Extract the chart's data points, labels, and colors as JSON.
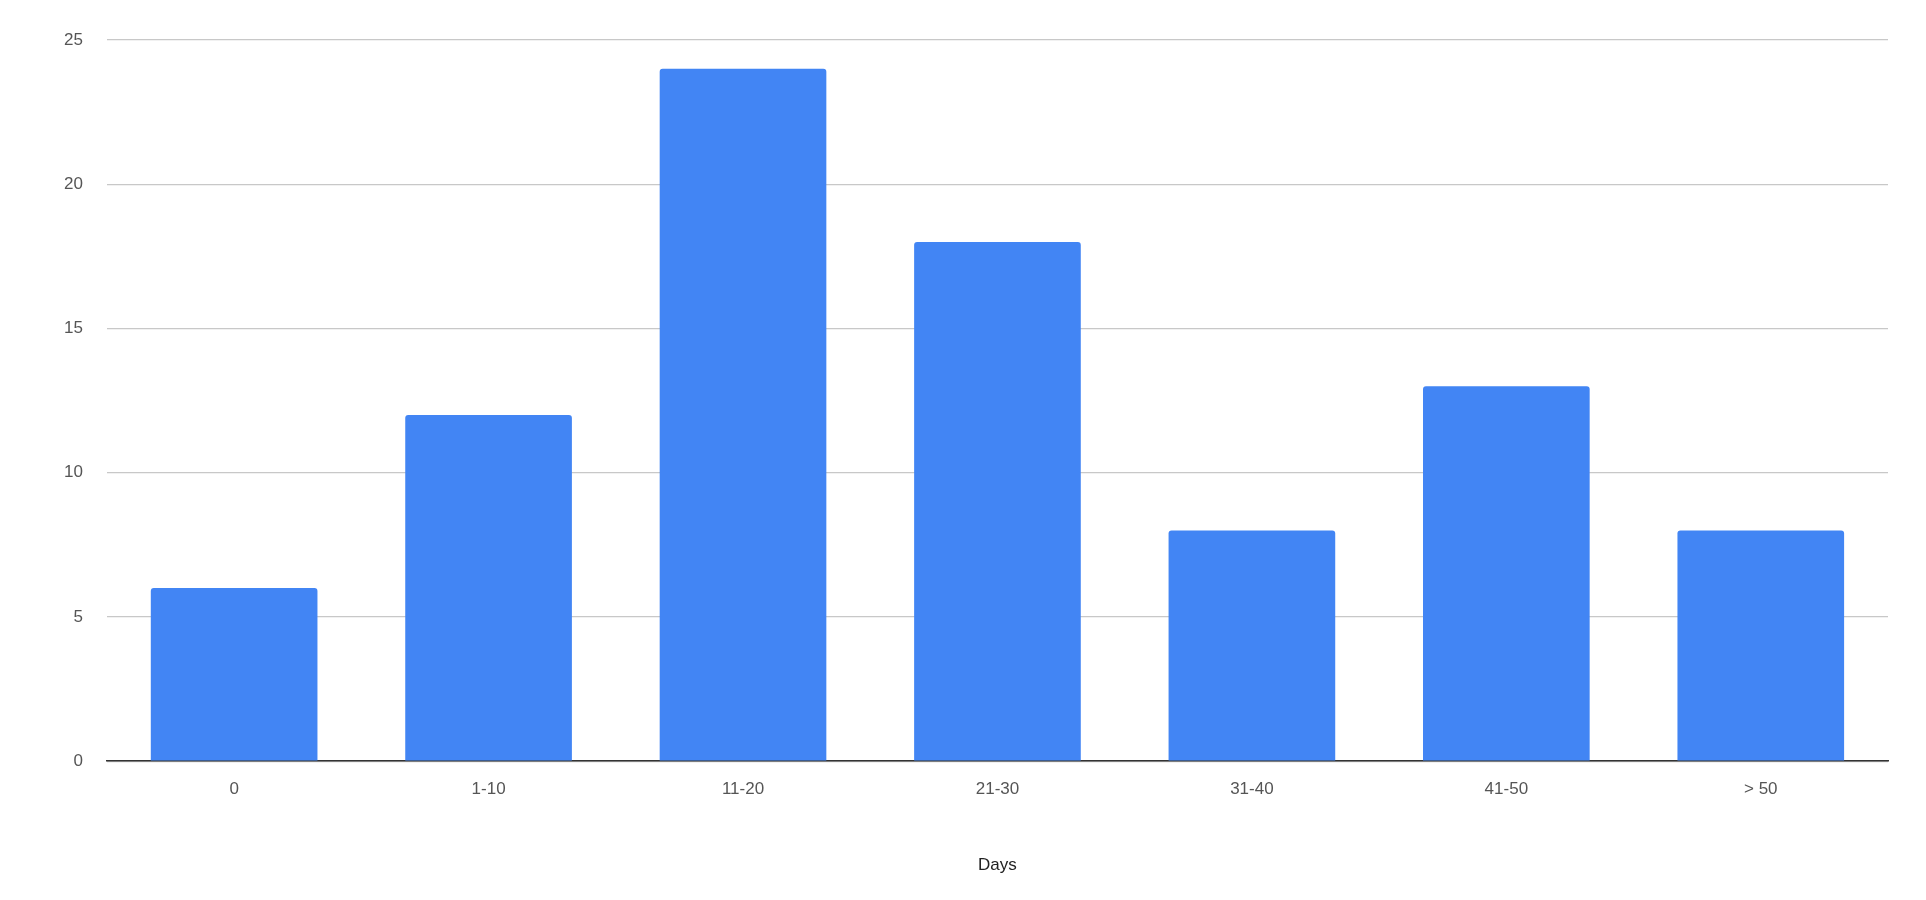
{
  "chart_data": {
    "type": "bar",
    "xlabel": "Days",
    "categories": [
      "0",
      "1-10",
      "11-20",
      "21-30",
      "31-40",
      "41-50",
      "> 50"
    ],
    "values": [
      6,
      12,
      24,
      18,
      8,
      13,
      8
    ],
    "color": "#4285f4",
    "ylim": [
      0,
      25
    ],
    "yticks": [
      0,
      5,
      10,
      15,
      20,
      25
    ],
    "grid": "y",
    "legend": false
  }
}
